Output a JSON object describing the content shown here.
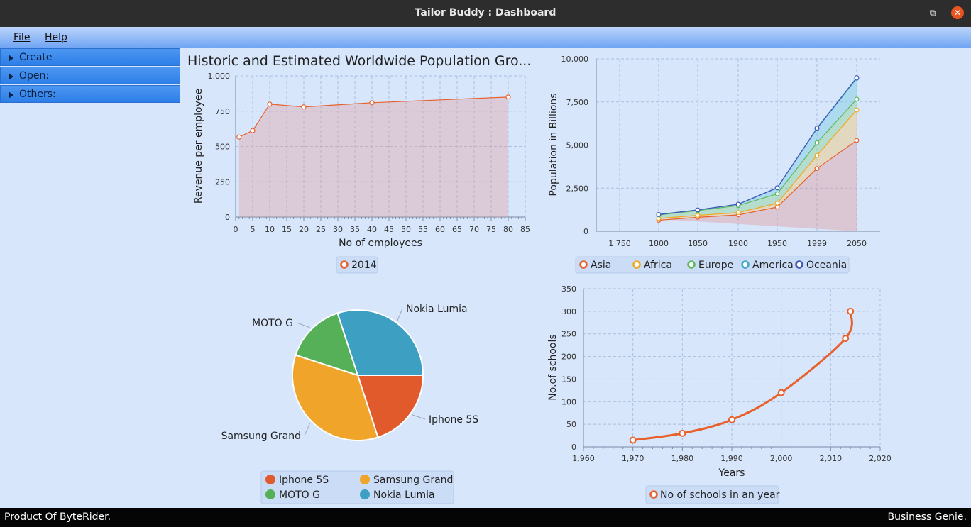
{
  "window": {
    "title": "Tailor Buddy : Dashboard",
    "min": "–",
    "max": "⧉",
    "close": "✕"
  },
  "menu": [
    {
      "label": "File"
    },
    {
      "label": "Help"
    }
  ],
  "sidebar": {
    "items": [
      {
        "label": "Create"
      },
      {
        "label": "Open:"
      },
      {
        "label": "Others:"
      }
    ]
  },
  "status": {
    "left": "Product Of ByteRider.",
    "right": "Business Genie."
  },
  "colors": {
    "accent": "#e8602c",
    "asia": "#e8602c",
    "africa": "#f0a81f",
    "europe": "#5cb85c",
    "america": "#3fa8c9",
    "oceania": "#3f55b5",
    "pie_iphone": "#e05a2b",
    "pie_samsung": "#f0a52a",
    "pie_moto": "#55b057",
    "pie_nokia": "#3d9fc2"
  },
  "chart_data": [
    {
      "type": "area",
      "title": "Historic and Estimated Worldwide Population Gro...",
      "xlabel": "No of employees",
      "ylabel": "Revenue per employee",
      "xlim": [
        0,
        85
      ],
      "ylim": [
        0,
        1000
      ],
      "x_ticks": [
        "0",
        "5",
        "10",
        "15",
        "20",
        "25",
        "30",
        "35",
        "40",
        "45",
        "50",
        "55",
        "60",
        "65",
        "70",
        "75",
        "80",
        "85"
      ],
      "y_ticks": [
        "0",
        "250",
        "500",
        "750",
        "1,000"
      ],
      "series": [
        {
          "name": "2014",
          "x": [
            1,
            5,
            10,
            20,
            40,
            80
          ],
          "y": [
            567,
            612,
            800,
            780,
            810,
            850
          ]
        }
      ],
      "legend": [
        "2014"
      ]
    },
    {
      "type": "area",
      "ylabel": "Population in Billions",
      "categories": [
        "1800",
        "1850",
        "1900",
        "1950",
        "1999",
        "2050"
      ],
      "x_tick_extra": "1 750",
      "ylim": [
        0,
        10000
      ],
      "y_ticks": [
        "0",
        "2,500",
        "5,000",
        "7,500",
        "10,000"
      ],
      "stacked": true,
      "series": [
        {
          "name": "Asia",
          "values": [
            635,
            809,
            947,
            1402,
            3634,
            5268
          ]
        },
        {
          "name": "Africa",
          "values": [
            107,
            111,
            133,
            221,
            767,
            1766
          ]
        },
        {
          "name": "Europe",
          "values": [
            203,
            276,
            408,
            547,
            729,
            628
          ]
        },
        {
          "name": "America",
          "values": [
            24,
            38,
            74,
            339,
            818,
            1201
          ]
        },
        {
          "name": "Oceania",
          "values": [
            2,
            2,
            6,
            13,
            30,
            46
          ]
        }
      ],
      "legend": [
        "Asia",
        "Africa",
        "Europe",
        "America",
        "Oceania"
      ]
    },
    {
      "type": "pie",
      "slices": [
        {
          "name": "Iphone 5S",
          "value": 20
        },
        {
          "name": "Samsung Grand",
          "value": 35
        },
        {
          "name": "MOTO G",
          "value": 15
        },
        {
          "name": "Nokia Lumia",
          "value": 30
        }
      ],
      "legend": [
        "Iphone 5S",
        "Samsung Grand",
        "MOTO G",
        "Nokia Lumia"
      ]
    },
    {
      "type": "line",
      "xlabel": "Years",
      "ylabel": "No.of schools",
      "xlim": [
        1960,
        2020
      ],
      "ylim": [
        0,
        350
      ],
      "x_ticks": [
        "1,960",
        "1,970",
        "1,980",
        "1,990",
        "2,000",
        "2,010",
        "2,020"
      ],
      "y_ticks": [
        "0",
        "50",
        "100",
        "150",
        "200",
        "250",
        "300",
        "350"
      ],
      "series": [
        {
          "name": "No of schools in an year",
          "x": [
            1970,
            1980,
            1990,
            2000,
            2013,
            2014
          ],
          "y": [
            15,
            30,
            60,
            120,
            240,
            300
          ]
        }
      ],
      "legend": [
        "No of schools in an year"
      ]
    }
  ]
}
